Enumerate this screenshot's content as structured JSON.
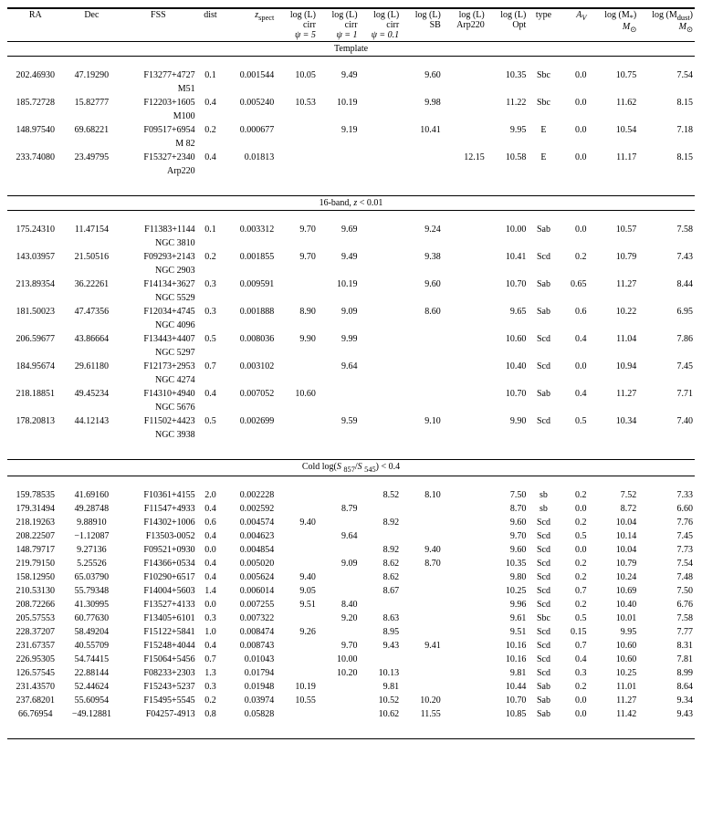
{
  "columns": {
    "ra": "RA",
    "dec": "Dec",
    "fss": "FSS",
    "dist": "dist",
    "zspect": "z",
    "zspect_sub": "spect",
    "l1a": "log (L)",
    "l1b": "cirr",
    "l1c": "ψ = 5",
    "l2a": "log (L)",
    "l2b": "cirr",
    "l2c": "ψ = 1",
    "l3a": "log (L)",
    "l3b": "cirr",
    "l3c": "ψ = 0.1",
    "sba": "log (L)",
    "sbb": "SB",
    "arpa": "log (L)",
    "arpb": "Arp220",
    "opta": "log (L)",
    "optb": "Opt",
    "type": "type",
    "av": "A",
    "av_sub": "V",
    "msa": "log (M",
    "msb": "*",
    "msc": ")",
    "msd": "M",
    "mse": "⊙",
    "mda": "log (M",
    "mdb": "dust",
    "mdc": ")",
    "mdd": "M",
    "mde": "⊙"
  },
  "sections": [
    {
      "title": "Template",
      "rows": [
        {
          "ra": "202.46930",
          "dec": "47.19290",
          "fss": "F13277+4727",
          "fss2": "M51",
          "dist": "0.1",
          "z": "0.001544",
          "l1": "10.05",
          "l2": "9.49",
          "l3": "",
          "sb": "9.60",
          "arp": "",
          "opt": "10.35",
          "type": "Sbc",
          "av": "0.0",
          "ms": "10.75",
          "md": "7.54"
        },
        {
          "ra": "185.72728",
          "dec": "15.82777",
          "fss": "F12203+1605",
          "fss2": "M100",
          "dist": "0.4",
          "z": "0.005240",
          "l1": "10.53",
          "l2": "10.19",
          "l3": "",
          "sb": "9.98",
          "arp": "",
          "opt": "11.22",
          "type": "Sbc",
          "av": "0.0",
          "ms": "11.62",
          "md": "8.15"
        },
        {
          "ra": "148.97540",
          "dec": "69.68221",
          "fss": "F09517+6954",
          "fss2": "M 82",
          "dist": "0.2",
          "z": "0.000677",
          "l1": "",
          "l2": "9.19",
          "l3": "",
          "sb": "10.41",
          "arp": "",
          "opt": "9.95",
          "type": "E",
          "av": "0.0",
          "ms": "10.54",
          "md": "7.18"
        },
        {
          "ra": "233.74080",
          "dec": "23.49795",
          "fss": "F15327+2340",
          "fss2": "Arp220",
          "dist": "0.4",
          "z": "0.01813",
          "l1": "",
          "l2": "",
          "l3": "",
          "sb": "",
          "arp": "12.15",
          "opt": "10.58",
          "type": "E",
          "av": "0.0",
          "ms": "11.17",
          "md": "8.15"
        }
      ]
    },
    {
      "title": "16-band, z < 0.01",
      "rows": [
        {
          "ra": "175.24310",
          "dec": "11.47154",
          "fss": "F11383+1144",
          "fss2": "NGC 3810",
          "dist": "0.1",
          "z": "0.003312",
          "l1": "9.70",
          "l2": "9.69",
          "l3": "",
          "sb": "9.24",
          "arp": "",
          "opt": "10.00",
          "type": "Sab",
          "av": "0.0",
          "ms": "10.57",
          "md": "7.58"
        },
        {
          "ra": "143.03957",
          "dec": "21.50516",
          "fss": "F09293+2143",
          "fss2": "NGC 2903",
          "dist": "0.2",
          "z": "0.001855",
          "l1": "9.70",
          "l2": "9.49",
          "l3": "",
          "sb": "9.38",
          "arp": "",
          "opt": "10.41",
          "type": "Scd",
          "av": "0.2",
          "ms": "10.79",
          "md": "7.43"
        },
        {
          "ra": "213.89354",
          "dec": "36.22261",
          "fss": "F14134+3627",
          "fss2": "NGC 5529",
          "dist": "0.3",
          "z": "0.009591",
          "l1": "",
          "l2": "10.19",
          "l3": "",
          "sb": "9.60",
          "arp": "",
          "opt": "10.70",
          "type": "Sab",
          "av": "0.65",
          "ms": "11.27",
          "md": "8.44"
        },
        {
          "ra": "181.50023",
          "dec": "47.47356",
          "fss": "F12034+4745",
          "fss2": "NGC 4096",
          "dist": "0.3",
          "z": "0.001888",
          "l1": "8.90",
          "l2": "9.09",
          "l3": "",
          "sb": "8.60",
          "arp": "",
          "opt": "9.65",
          "type": "Sab",
          "av": "0.6",
          "ms": "10.22",
          "md": "6.95"
        },
        {
          "ra": "206.59677",
          "dec": "43.86664",
          "fss": "F13443+4407",
          "fss2": "NGC 5297",
          "dist": "0.5",
          "z": "0.008036",
          "l1": "9.90",
          "l2": "9.99",
          "l3": "",
          "sb": "",
          "arp": "",
          "opt": "10.60",
          "type": "Scd",
          "av": "0.4",
          "ms": "11.04",
          "md": "7.86"
        },
        {
          "ra": "184.95674",
          "dec": "29.61180",
          "fss": "F12173+2953",
          "fss2": "NGC 4274",
          "dist": "0.7",
          "z": "0.003102",
          "l1": "",
          "l2": "9.64",
          "l3": "",
          "sb": "",
          "arp": "",
          "opt": "10.40",
          "type": "Scd",
          "av": "0.0",
          "ms": "10.94",
          "md": "7.45"
        },
        {
          "ra": "218.18851",
          "dec": "49.45234",
          "fss": "F14310+4940",
          "fss2": "NGC 5676",
          "dist": "0.4",
          "z": "0.007052",
          "l1": "10.60",
          "l2": "",
          "l3": "",
          "sb": "",
          "arp": "",
          "opt": "10.70",
          "type": "Sab",
          "av": "0.4",
          "ms": "11.27",
          "md": "7.71"
        },
        {
          "ra": "178.20813",
          "dec": "44.12143",
          "fss": "F11502+4423",
          "fss2": "NGC 3938",
          "dist": "0.5",
          "z": "0.002699",
          "l1": "",
          "l2": "9.59",
          "l3": "",
          "sb": "9.10",
          "arp": "",
          "opt": "9.90",
          "type": "Scd",
          "av": "0.5",
          "ms": "10.34",
          "md": "7.40"
        }
      ]
    },
    {
      "title": "Cold log(S₈₅₇/S₅₄₅) < 0.4",
      "rows": [
        {
          "ra": "159.78535",
          "dec": "41.69160",
          "fss": "F10361+4155",
          "fss2": "",
          "dist": "2.0",
          "z": "0.002228",
          "l1": "",
          "l2": "",
          "l3": "8.52",
          "sb": "8.10",
          "arp": "",
          "opt": "7.50",
          "type": "sb",
          "av": "0.2",
          "ms": "7.52",
          "md": "7.33"
        },
        {
          "ra": "179.31494",
          "dec": "49.28748",
          "fss": "F11547+4933",
          "fss2": "",
          "dist": "0.4",
          "z": "0.002592",
          "l1": "",
          "l2": "8.79",
          "l3": "",
          "sb": "",
          "arp": "",
          "opt": "8.70",
          "type": "sb",
          "av": "0.0",
          "ms": "8.72",
          "md": "6.60"
        },
        {
          "ra": "218.19263",
          "dec": "9.88910",
          "fss": "F14302+1006",
          "fss2": "",
          "dist": "0.6",
          "z": "0.004574",
          "l1": "9.40",
          "l2": "",
          "l3": "8.92",
          "sb": "",
          "arp": "",
          "opt": "9.60",
          "type": "Scd",
          "av": "0.2",
          "ms": "10.04",
          "md": "7.76"
        },
        {
          "ra": "208.22507",
          "dec": "−1.12087",
          "fss": "F13503-0052",
          "fss2": "",
          "dist": "0.4",
          "z": "0.004623",
          "l1": "",
          "l2": "9.64",
          "l3": "",
          "sb": "",
          "arp": "",
          "opt": "9.70",
          "type": "Scd",
          "av": "0.5",
          "ms": "10.14",
          "md": "7.45"
        },
        {
          "ra": "148.79717",
          "dec": "9.27136",
          "fss": "F09521+0930",
          "fss2": "",
          "dist": "0.0",
          "z": "0.004854",
          "l1": "",
          "l2": "",
          "l3": "8.92",
          "sb": "9.40",
          "arp": "",
          "opt": "9.60",
          "type": "Scd",
          "av": "0.0",
          "ms": "10.04",
          "md": "7.73"
        },
        {
          "ra": "219.79150",
          "dec": "5.25526",
          "fss": "F14366+0534",
          "fss2": "",
          "dist": "0.4",
          "z": "0.005020",
          "l1": "",
          "l2": "9.09",
          "l3": "8.62",
          "sb": "8.70",
          "arp": "",
          "opt": "10.35",
          "type": "Scd",
          "av": "0.2",
          "ms": "10.79",
          "md": "7.54"
        },
        {
          "ra": "158.12950",
          "dec": "65.03790",
          "fss": "F10290+6517",
          "fss2": "",
          "dist": "0.4",
          "z": "0.005624",
          "l1": "9.40",
          "l2": "",
          "l3": "8.62",
          "sb": "",
          "arp": "",
          "opt": "9.80",
          "type": "Scd",
          "av": "0.2",
          "ms": "10.24",
          "md": "7.48"
        },
        {
          "ra": "210.53130",
          "dec": "55.79348",
          "fss": "F14004+5603",
          "fss2": "",
          "dist": "1.4",
          "z": "0.006014",
          "l1": "9.05",
          "l2": "",
          "l3": "8.67",
          "sb": "",
          "arp": "",
          "opt": "10.25",
          "type": "Scd",
          "av": "0.7",
          "ms": "10.69",
          "md": "7.50"
        },
        {
          "ra": "208.72266",
          "dec": "41.30995",
          "fss": "F13527+4133",
          "fss2": "",
          "dist": "0.0",
          "z": "0.007255",
          "l1": "9.51",
          "l2": "8.40",
          "l3": "",
          "sb": "",
          "arp": "",
          "opt": "9.96",
          "type": "Scd",
          "av": "0.2",
          "ms": "10.40",
          "md": "6.76"
        },
        {
          "ra": "205.57553",
          "dec": "60.77630",
          "fss": "F13405+6101",
          "fss2": "",
          "dist": "0.3",
          "z": "0.007322",
          "l1": "",
          "l2": "9.20",
          "l3": "8.63",
          "sb": "",
          "arp": "",
          "opt": "9.61",
          "type": "Sbc",
          "av": "0.5",
          "ms": "10.01",
          "md": "7.58"
        },
        {
          "ra": "228.37207",
          "dec": "58.49204",
          "fss": "F15122+5841",
          "fss2": "",
          "dist": "1.0",
          "z": "0.008474",
          "l1": "9.26",
          "l2": "",
          "l3": "8.95",
          "sb": "",
          "arp": "",
          "opt": "9.51",
          "type": "Scd",
          "av": "0.15",
          "ms": "9.95",
          "md": "7.77"
        },
        {
          "ra": "231.67357",
          "dec": "40.55709",
          "fss": "F15248+4044",
          "fss2": "",
          "dist": "0.4",
          "z": "0.008743",
          "l1": "",
          "l2": "9.70",
          "l3": "9.43",
          "sb": "9.41",
          "arp": "",
          "opt": "10.16",
          "type": "Scd",
          "av": "0.7",
          "ms": "10.60",
          "md": "8.31"
        },
        {
          "ra": "226.95305",
          "dec": "54.74415",
          "fss": "F15064+5456",
          "fss2": "",
          "dist": "0.7",
          "z": "0.01043",
          "l1": "",
          "l2": "10.00",
          "l3": "",
          "sb": "",
          "arp": "",
          "opt": "10.16",
          "type": "Scd",
          "av": "0.4",
          "ms": "10.60",
          "md": "7.81"
        },
        {
          "ra": "126.57545",
          "dec": "22.88144",
          "fss": "F08233+2303",
          "fss2": "",
          "dist": "1.3",
          "z": "0.01794",
          "l1": "",
          "l2": "10.20",
          "l3": "10.13",
          "sb": "",
          "arp": "",
          "opt": "9.81",
          "type": "Scd",
          "av": "0.3",
          "ms": "10.25",
          "md": "8.99"
        },
        {
          "ra": "231.43570",
          "dec": "52.44624",
          "fss": "F15243+5237",
          "fss2": "",
          "dist": "0.3",
          "z": "0.01948",
          "l1": "10.19",
          "l2": "",
          "l3": "9.81",
          "sb": "",
          "arp": "",
          "opt": "10.44",
          "type": "Sab",
          "av": "0.2",
          "ms": "11.01",
          "md": "8.64"
        },
        {
          "ra": "237.68201",
          "dec": "55.60954",
          "fss": "F15495+5545",
          "fss2": "",
          "dist": "0.2",
          "z": "0.03974",
          "l1": "10.55",
          "l2": "",
          "l3": "10.52",
          "sb": "10.20",
          "arp": "",
          "opt": "10.70",
          "type": "Sab",
          "av": "0.0",
          "ms": "11.27",
          "md": "9.34"
        },
        {
          "ra": "66.76954",
          "dec": "−49.12881",
          "fss": "F04257-4913",
          "fss2": "",
          "dist": "0.8",
          "z": "0.05828",
          "l1": "",
          "l2": "",
          "l3": "10.62",
          "sb": "11.55",
          "arp": "",
          "opt": "10.85",
          "type": "Sab",
          "av": "0.0",
          "ms": "11.42",
          "md": "9.43"
        }
      ]
    }
  ]
}
